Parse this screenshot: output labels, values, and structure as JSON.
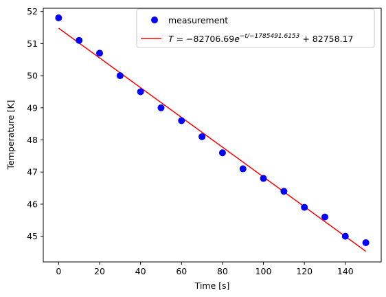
{
  "chart_data": {
    "type": "scatter",
    "xlabel": "Time [s]",
    "ylabel": "Temperature [K]",
    "xlim": [
      -7.5,
      157.5
    ],
    "ylim": [
      44.2,
      52.1
    ],
    "x_ticks": [
      0,
      20,
      40,
      60,
      80,
      100,
      120,
      140
    ],
    "y_ticks": [
      45,
      46,
      47,
      48,
      49,
      50,
      51,
      52
    ],
    "grid": false,
    "legend_position": "top-right",
    "series": [
      {
        "name": "measurement",
        "kind": "points",
        "color": "#0000ff",
        "x": [
          0,
          10,
          20,
          30,
          40,
          50,
          60,
          70,
          80,
          90,
          100,
          110,
          120,
          130,
          140,
          150
        ],
        "y": [
          51.8,
          51.1,
          50.7,
          50.0,
          49.5,
          49.0,
          48.6,
          48.1,
          47.6,
          47.1,
          46.8,
          46.4,
          45.9,
          45.6,
          45.0,
          44.8
        ]
      },
      {
        "name_parts": {
          "var": "T",
          "eq": " = −82706.69",
          "base": "e",
          "exponent": "−t/−1785491.6153",
          "tail": " + 82758.17"
        },
        "kind": "line",
        "color": "#ff0000",
        "x": [
          0,
          150
        ],
        "y": [
          51.48,
          44.53
        ]
      }
    ]
  }
}
